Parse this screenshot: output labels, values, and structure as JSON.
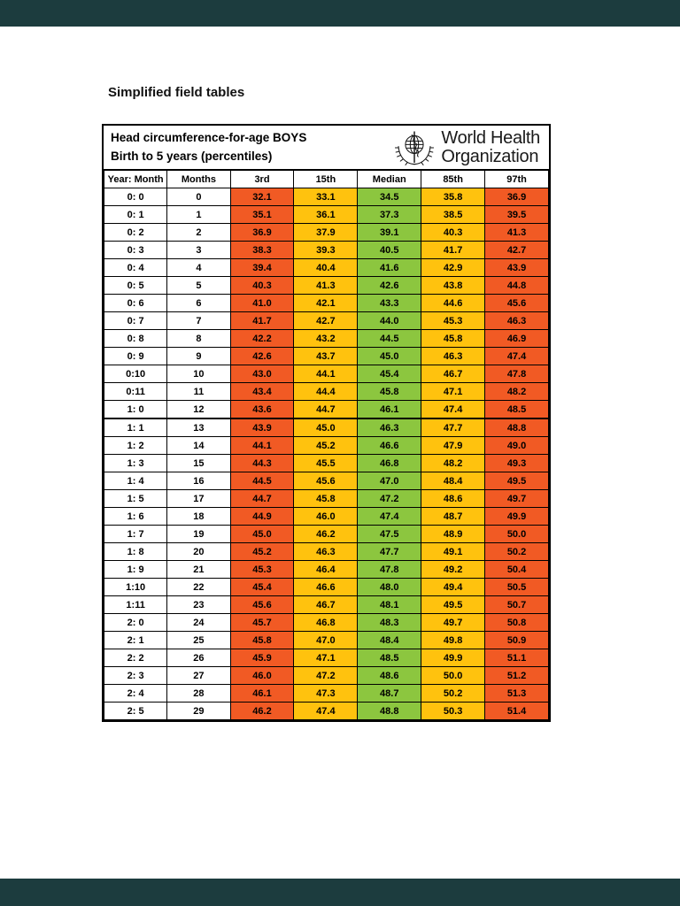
{
  "page": {
    "doc_title": "Simplified field tables"
  },
  "colors": {
    "orange": "#F15A24",
    "yellow": "#FFC20E",
    "green": "#8CC63F",
    "viewer_bar": "#1C3C3E"
  },
  "table": {
    "header": {
      "line1": "Head circumference-for-age BOYS",
      "line2": "Birth to 5 years (percentiles)",
      "who_name_line1": "World Health",
      "who_name_line2": "Organization"
    },
    "columns": [
      "Year: Month",
      "Months",
      "3rd",
      "15th",
      "Median",
      "85th",
      "97th"
    ],
    "rows": [
      [
        "0: 0",
        "0",
        "32.1",
        "33.1",
        "34.5",
        "35.8",
        "36.9"
      ],
      [
        "0: 1",
        "1",
        "35.1",
        "36.1",
        "37.3",
        "38.5",
        "39.5"
      ],
      [
        "0: 2",
        "2",
        "36.9",
        "37.9",
        "39.1",
        "40.3",
        "41.3"
      ],
      [
        "0: 3",
        "3",
        "38.3",
        "39.3",
        "40.5",
        "41.7",
        "42.7"
      ],
      [
        "0: 4",
        "4",
        "39.4",
        "40.4",
        "41.6",
        "42.9",
        "43.9"
      ],
      [
        "0: 5",
        "5",
        "40.3",
        "41.3",
        "42.6",
        "43.8",
        "44.8"
      ],
      [
        "0: 6",
        "6",
        "41.0",
        "42.1",
        "43.3",
        "44.6",
        "45.6"
      ],
      [
        "0: 7",
        "7",
        "41.7",
        "42.7",
        "44.0",
        "45.3",
        "46.3"
      ],
      [
        "0: 8",
        "8",
        "42.2",
        "43.2",
        "44.5",
        "45.8",
        "46.9"
      ],
      [
        "0: 9",
        "9",
        "42.6",
        "43.7",
        "45.0",
        "46.3",
        "47.4"
      ],
      [
        "0:10",
        "10",
        "43.0",
        "44.1",
        "45.4",
        "46.7",
        "47.8"
      ],
      [
        "0:11",
        "11",
        "43.4",
        "44.4",
        "45.8",
        "47.1",
        "48.2"
      ],
      [
        "1: 0",
        "12",
        "43.6",
        "44.7",
        "46.1",
        "47.4",
        "48.5"
      ],
      [
        "1: 1",
        "13",
        "43.9",
        "45.0",
        "46.3",
        "47.7",
        "48.8"
      ],
      [
        "1: 2",
        "14",
        "44.1",
        "45.2",
        "46.6",
        "47.9",
        "49.0"
      ],
      [
        "1: 3",
        "15",
        "44.3",
        "45.5",
        "46.8",
        "48.2",
        "49.3"
      ],
      [
        "1: 4",
        "16",
        "44.5",
        "45.6",
        "47.0",
        "48.4",
        "49.5"
      ],
      [
        "1: 5",
        "17",
        "44.7",
        "45.8",
        "47.2",
        "48.6",
        "49.7"
      ],
      [
        "1: 6",
        "18",
        "44.9",
        "46.0",
        "47.4",
        "48.7",
        "49.9"
      ],
      [
        "1: 7",
        "19",
        "45.0",
        "46.2",
        "47.5",
        "48.9",
        "50.0"
      ],
      [
        "1: 8",
        "20",
        "45.2",
        "46.3",
        "47.7",
        "49.1",
        "50.2"
      ],
      [
        "1: 9",
        "21",
        "45.3",
        "46.4",
        "47.8",
        "49.2",
        "50.4"
      ],
      [
        "1:10",
        "22",
        "45.4",
        "46.6",
        "48.0",
        "49.4",
        "50.5"
      ],
      [
        "1:11",
        "23",
        "45.6",
        "46.7",
        "48.1",
        "49.5",
        "50.7"
      ],
      [
        "2: 0",
        "24",
        "45.7",
        "46.8",
        "48.3",
        "49.7",
        "50.8"
      ],
      [
        "2: 1",
        "25",
        "45.8",
        "47.0",
        "48.4",
        "49.8",
        "50.9"
      ],
      [
        "2: 2",
        "26",
        "45.9",
        "47.1",
        "48.5",
        "49.9",
        "51.1"
      ],
      [
        "2: 3",
        "27",
        "46.0",
        "47.2",
        "48.6",
        "50.0",
        "51.2"
      ],
      [
        "2: 4",
        "28",
        "46.1",
        "47.3",
        "48.7",
        "50.2",
        "51.3"
      ],
      [
        "2: 5",
        "29",
        "46.2",
        "47.4",
        "48.8",
        "50.3",
        "51.4"
      ]
    ]
  }
}
